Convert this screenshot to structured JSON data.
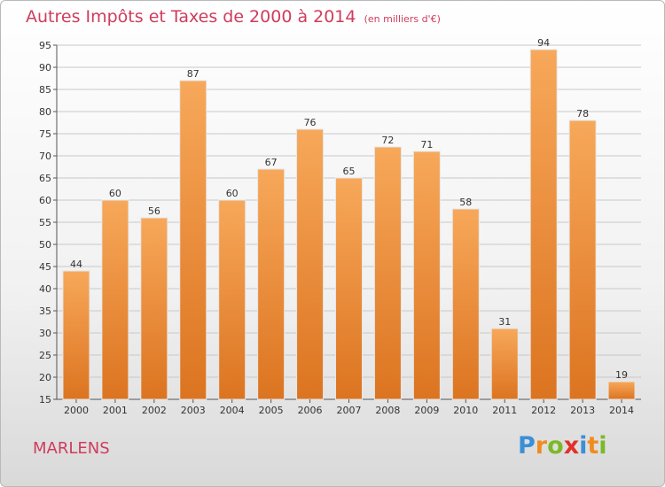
{
  "header": {
    "title": "Autres Impôts et Taxes de 2000 à 2014",
    "unit": "(en milliers d'€)"
  },
  "footer": {
    "place": "MARLENS",
    "logo_letters": [
      "P",
      "r",
      "o",
      "x",
      "i",
      "t",
      "i"
    ],
    "logo_colors": [
      "#3b8fd6",
      "#f08c1e",
      "#7cb928",
      "#e0312b",
      "#3b8fd6",
      "#f08c1e",
      "#7cb928"
    ]
  },
  "colors": {
    "bar_top": "#f7a85a",
    "bar_bottom": "#dc7420",
    "title": "#cf3c5c",
    "grid": "#c8c8c8"
  },
  "chart_data": {
    "type": "bar",
    "title": "Autres Impôts et Taxes de 2000 à 2014",
    "subtitle": "(en milliers d'€)",
    "xlabel": "",
    "ylabel": "",
    "ylim": [
      15,
      95
    ],
    "yticks": [
      15,
      20,
      25,
      30,
      35,
      40,
      45,
      50,
      55,
      60,
      65,
      70,
      75,
      80,
      85,
      90,
      95
    ],
    "grid": true,
    "categories": [
      "2000",
      "2001",
      "2002",
      "2003",
      "2004",
      "2005",
      "2006",
      "2007",
      "2008",
      "2009",
      "2010",
      "2011",
      "2012",
      "2013",
      "2014"
    ],
    "values": [
      44,
      60,
      56,
      87,
      60,
      67,
      76,
      65,
      72,
      71,
      58,
      31,
      94,
      78,
      19
    ]
  }
}
